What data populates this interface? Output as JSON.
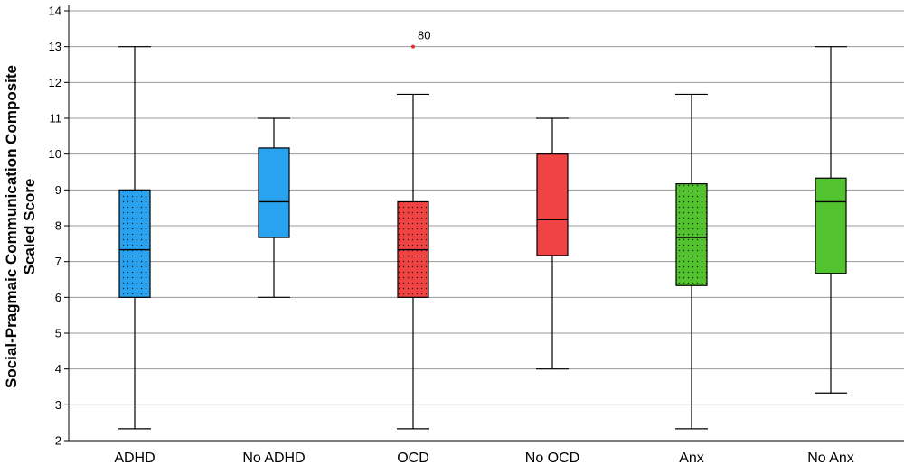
{
  "chart_data": {
    "type": "box",
    "ylabel_lines": [
      "Social-Pragmaic Communication Composite",
      "Scaled Score"
    ],
    "ylim": [
      2,
      14
    ],
    "yticks": [
      2,
      3,
      4,
      5,
      6,
      7,
      8,
      9,
      10,
      11,
      12,
      13,
      14
    ],
    "grid": true,
    "categories": [
      "ADHD",
      "No ADHD",
      "OCD",
      "No OCD",
      "Anx",
      "No Anx"
    ],
    "boxes": [
      {
        "category": "ADHD",
        "min": 2.33,
        "q1": 6.0,
        "median": 7.33,
        "q3": 9.0,
        "max": 13.0,
        "color": "#29A3F0",
        "pattern": "dotted"
      },
      {
        "category": "No ADHD",
        "min": 6.0,
        "q1": 7.67,
        "median": 8.67,
        "q3": 10.17,
        "max": 11.0,
        "color": "#29A3F0",
        "pattern": "solid"
      },
      {
        "category": "OCD",
        "min": 2.33,
        "q1": 6.0,
        "median": 7.33,
        "q3": 8.67,
        "max": 11.67,
        "color": "#F04444",
        "pattern": "dotted"
      },
      {
        "category": "No OCD",
        "min": 4.0,
        "q1": 7.17,
        "median": 8.17,
        "q3": 10.0,
        "max": 11.0,
        "color": "#F04444",
        "pattern": "solid"
      },
      {
        "category": "Anx",
        "min": 2.33,
        "q1": 6.33,
        "median": 7.67,
        "q3": 9.17,
        "max": 11.67,
        "color": "#53C22F",
        "pattern": "dotted"
      },
      {
        "category": "No Anx",
        "min": 3.33,
        "q1": 6.67,
        "median": 8.67,
        "q3": 9.33,
        "max": 13.0,
        "color": "#53C22F",
        "pattern": "solid"
      }
    ],
    "outliers": [
      {
        "category": "OCD",
        "value": 13.0,
        "label": "80",
        "color": "#E0302F"
      }
    ]
  }
}
